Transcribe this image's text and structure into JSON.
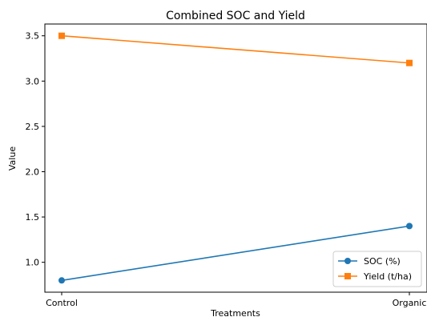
{
  "chart_data": {
    "type": "line",
    "title": "Combined SOC and Yield",
    "xlabel": "Treatments",
    "ylabel": "Value",
    "categories": [
      "Control",
      "Organic"
    ],
    "ylim": [
      0.67,
      3.63
    ],
    "yticks": [
      1.0,
      1.5,
      2.0,
      2.5,
      3.0,
      3.5
    ],
    "grid": false,
    "legend_position": "lower-right",
    "series": [
      {
        "name": "SOC (%)",
        "values": [
          0.8,
          1.4
        ],
        "color": "#1f77b4",
        "marker": "circle"
      },
      {
        "name": "Yield (t/ha)",
        "values": [
          3.5,
          3.2
        ],
        "color": "#ff7f0e",
        "marker": "square"
      }
    ]
  }
}
